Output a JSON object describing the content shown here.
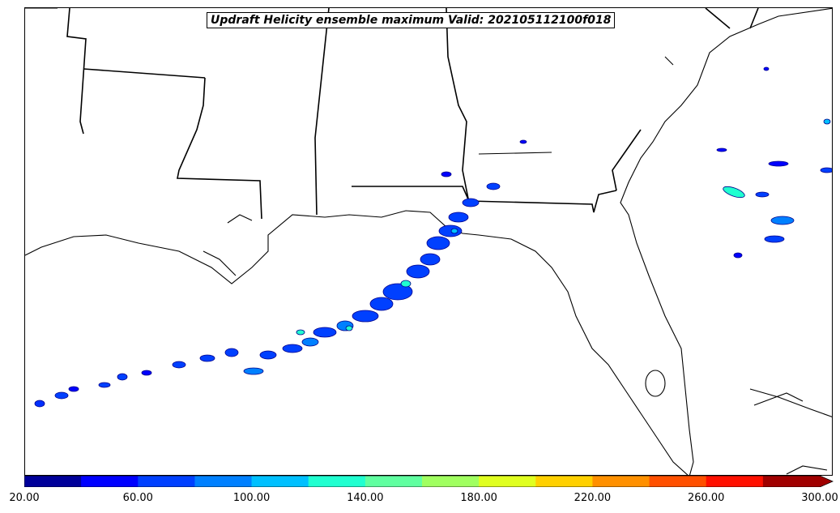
{
  "title": "Updraft Helicity ensemble maximum Valid: 202105112100f018",
  "colorbar": {
    "colors": [
      "#00009a",
      "#0000ff",
      "#0040ff",
      "#0080ff",
      "#00c0ff",
      "#20ffd0",
      "#60ffa0",
      "#a0ff60",
      "#e0ff20",
      "#ffd000",
      "#ff9000",
      "#ff5000",
      "#ff1000",
      "#a00000"
    ],
    "tick_labels": [
      "20.00",
      "60.00",
      "100.00",
      "140.00",
      "180.00",
      "220.00",
      "260.00",
      "300.00"
    ],
    "extend": "max"
  },
  "map": {
    "region": "Southeastern United States and Gulf of Mexico",
    "features": [
      "coastline",
      "state-borders"
    ]
  }
}
